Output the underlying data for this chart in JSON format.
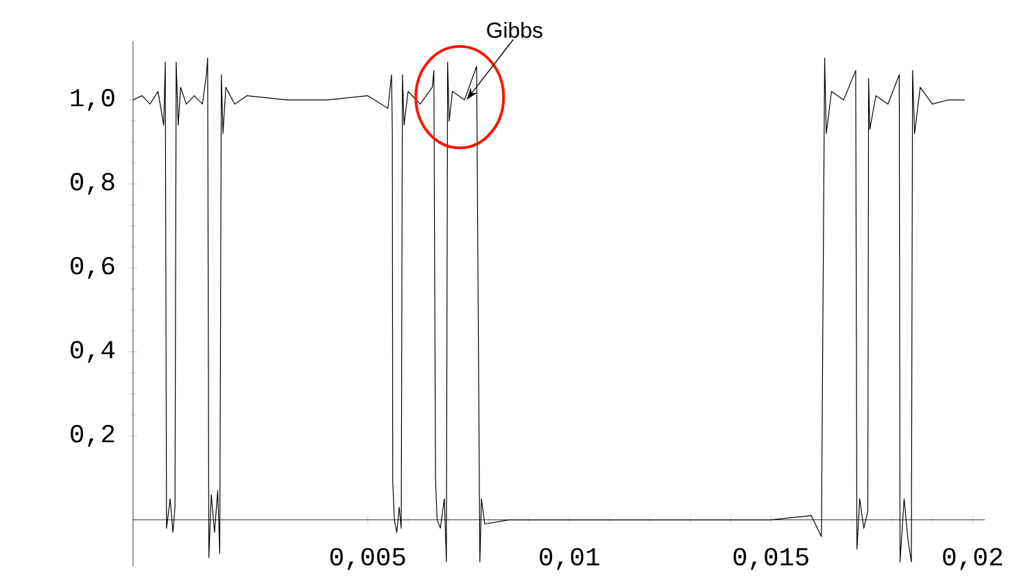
{
  "chart_data": {
    "type": "line",
    "color": "#000000",
    "x": [
      -0.00082,
      -0.0006,
      -0.0004,
      -0.0002,
      -6e-05,
      -2e-05,
      1e-05,
      0.0001,
      0.00017,
      0.00022,
      0.00025,
      0.0003,
      0.00036,
      0.0005,
      0.0007,
      0.0009,
      0.001,
      0.00103,
      0.00106,
      0.00112,
      0.0012,
      0.00128,
      0.00133,
      0.00137,
      0.00141,
      0.00148,
      0.0017,
      0.002,
      0.003,
      0.004,
      0.005,
      0.0055,
      0.00559,
      0.00561,
      0.00562,
      0.00566,
      0.00572,
      0.00578,
      0.00583,
      0.00586,
      0.0059,
      0.006,
      0.0063,
      0.0066,
      0.00664,
      0.00668,
      0.00672,
      0.0068,
      0.0069,
      0.00695,
      0.00698,
      0.00702,
      0.0071,
      0.0074,
      0.0077,
      0.00778,
      0.00782,
      0.0079,
      0.0085,
      0.0095,
      0.0105,
      0.0115,
      0.0125,
      0.0135,
      0.015,
      0.016,
      0.01625,
      0.01633,
      0.01637,
      0.0165,
      0.0168,
      0.0171,
      0.01713,
      0.0172,
      0.0173,
      0.0174,
      0.01742,
      0.01745,
      0.0176,
      0.0179,
      0.01818,
      0.0182,
      0.0183,
      0.0184,
      0.01848,
      0.01851,
      0.01856,
      0.0187,
      0.019,
      0.0194,
      0.0198
    ],
    "values": [
      1.0,
      1.01,
      0.99,
      1.02,
      0.94,
      1.09,
      -0.02,
      0.05,
      -0.03,
      0.03,
      1.09,
      0.94,
      1.03,
      0.99,
      1.01,
      0.99,
      1.06,
      1.1,
      -0.09,
      0.06,
      -0.03,
      0.07,
      -0.08,
      1.06,
      0.92,
      1.03,
      0.99,
      1.01,
      1.0,
      1.0,
      1.01,
      0.98,
      1.06,
      0.92,
      0.09,
      0.0,
      -0.03,
      0.03,
      -0.02,
      1.06,
      0.94,
      1.02,
      0.99,
      1.03,
      1.07,
      0.1,
      0.0,
      -0.02,
      0.05,
      -0.1,
      1.09,
      0.95,
      1.02,
      1.0,
      1.08,
      -0.1,
      0.05,
      -0.01,
      0.0,
      0.0,
      0.0,
      0.0,
      0.0,
      0.0,
      0.0,
      0.01,
      -0.04,
      1.1,
      0.92,
      1.02,
      1.0,
      1.07,
      -0.07,
      0.05,
      -0.02,
      0.02,
      1.05,
      0.93,
      1.01,
      0.99,
      1.06,
      -0.1,
      0.05,
      -0.05,
      -0.1,
      1.07,
      0.92,
      1.03,
      0.99,
      1.0,
      1.0
    ],
    "xlim": [
      -0.00082,
      0.0203
    ],
    "ylim": [
      -0.11,
      1.14
    ],
    "xticks": [
      {
        "value": 0.005,
        "label": "0,005"
      },
      {
        "value": 0.01,
        "label": "0,01"
      },
      {
        "value": 0.015,
        "label": "0,015"
      },
      {
        "value": 0.02,
        "label": "0,02"
      }
    ],
    "yticks": [
      {
        "value": 0.2,
        "label": "0,2"
      },
      {
        "value": 0.4,
        "label": "0,4"
      },
      {
        "value": 0.6,
        "label": "0,6"
      },
      {
        "value": 0.8,
        "label": "0,8"
      },
      {
        "value": 1.0,
        "label": "1,0"
      }
    ],
    "annotations": [
      {
        "text": "Gibbs",
        "x": 0.00745,
        "y": 1.0
      }
    ]
  }
}
